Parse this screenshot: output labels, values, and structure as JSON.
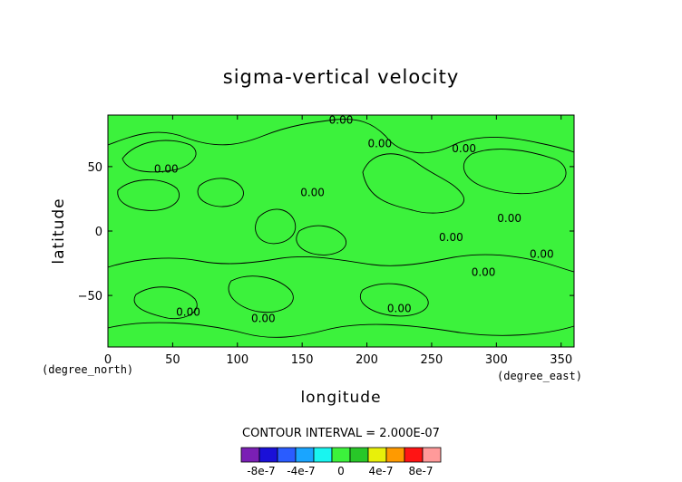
{
  "chart_data": {
    "type": "heatmap",
    "title": "sigma-vertical velocity",
    "xlabel": "longitude",
    "ylabel": "latitude",
    "x_unit": "(degree_east)",
    "y_unit": "(degree_north)",
    "xlim": [
      0,
      360
    ],
    "ylim": [
      -90,
      90
    ],
    "x_ticks": [
      0,
      50,
      100,
      150,
      200,
      250,
      300,
      350
    ],
    "y_ticks": [
      -50,
      0,
      50
    ],
    "x_tick_labels": [
      "0",
      "50",
      "100",
      "150",
      "200",
      "250",
      "300",
      "350"
    ],
    "y_tick_labels": [
      "−50",
      "0",
      "50"
    ],
    "contour_interval_text": "CONTOUR INTERVAL = 2.000E-07",
    "field_color": "#3cf23c",
    "contour_labels": [
      {
        "text": "0.00",
        "x": 180,
        "y": 86
      },
      {
        "text": "0.00",
        "x": 45,
        "y": 48
      },
      {
        "text": "0.00",
        "x": 158,
        "y": 30
      },
      {
        "text": "0.00",
        "x": 210,
        "y": 68
      },
      {
        "text": "0.00",
        "x": 275,
        "y": 64
      },
      {
        "text": "0.00",
        "x": 265,
        "y": -5
      },
      {
        "text": "0.00",
        "x": 310,
        "y": 10
      },
      {
        "text": "0.00",
        "x": 290,
        "y": -32
      },
      {
        "text": "0.00",
        "x": 335,
        "y": -18
      },
      {
        "text": "0.00",
        "x": 62,
        "y": -63
      },
      {
        "text": "0.00",
        "x": 120,
        "y": -68
      },
      {
        "text": "0.00",
        "x": 225,
        "y": -60
      }
    ],
    "colorbar": {
      "levels": [
        -1e-06,
        -8e-07,
        -6e-07,
        -4e-07,
        -2e-07,
        0,
        2e-07,
        4e-07,
        6e-07,
        8e-07,
        1e-06
      ],
      "colors": [
        "#7a1fb5",
        "#1a10d8",
        "#2a5cff",
        "#1aa5ff",
        "#19f5f0",
        "#3cf23c",
        "#28c728",
        "#e8f00a",
        "#ff9a00",
        "#ff1414",
        "#ff9a9a"
      ],
      "tick_labels": [
        "-8e-7",
        "-4e-7",
        "0",
        "4e-7",
        "8e-7"
      ]
    }
  }
}
